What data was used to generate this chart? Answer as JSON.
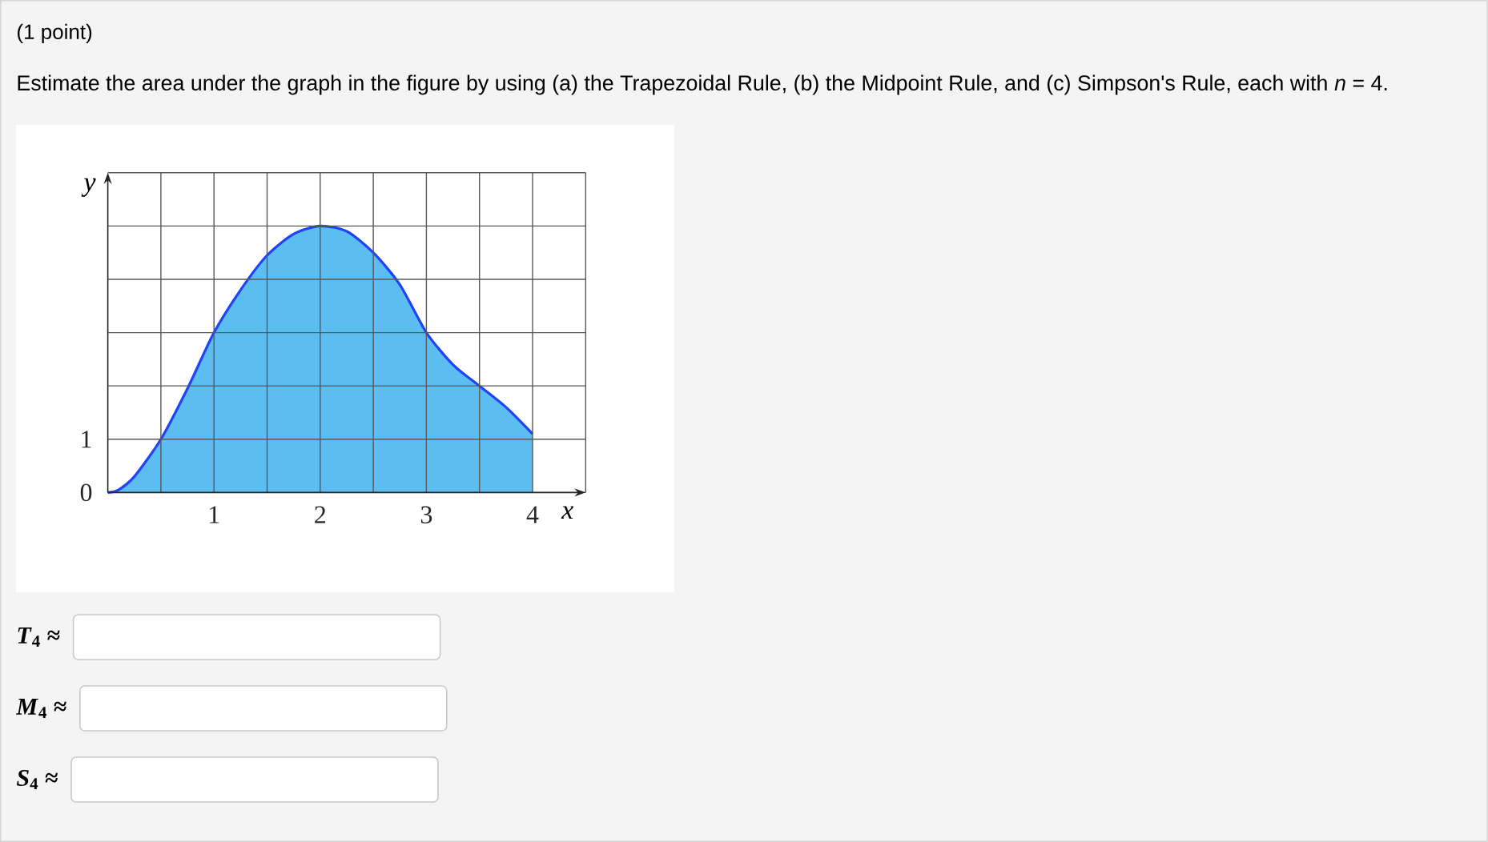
{
  "chart_data": {
    "type": "area",
    "title": "(1 point)",
    "subtitle": "Estimate the area under the graph in the figure by using (a) the Trapezoidal Rule, (b) the Midpoint Rule, and (c) Simpson's Rule, each with *n* = 4.",
    "xlabel": "x",
    "ylabel": "y",
    "annotations": [
      "*T*$_{4}$ ≈",
      "*M*$_{4}$ ≈",
      "*S*$_{4}$ ≈"
    ],
    "x": [
      0,
      0.1,
      0.25,
      0.5,
      0.75,
      1,
      1.25,
      1.5,
      1.75,
      2,
      2.25,
      2.5,
      2.75,
      3,
      3.25,
      3.5,
      3.75,
      4
    ],
    "series": [
      {
        "color": "#5cbdf0",
        "values": [
          0,
          0.05,
          0.3,
          1.0,
          1.95,
          3.0,
          3.8,
          4.45,
          4.85,
          5.0,
          4.9,
          4.5,
          3.9,
          3.0,
          2.4,
          2.0,
          1.6,
          1.1
        ]
      }
    ],
    "xlim": [
      0,
      4.5
    ],
    "ylim": [
      0,
      6
    ],
    "xticks": [
      {
        "value": 0.5,
        "label": null
      },
      1,
      {
        "value": 1.5,
        "label": null
      },
      2,
      {
        "value": 2.5,
        "label": null
      },
      3,
      {
        "value": 3.5,
        "label": null
      },
      4,
      {
        "value": 4.5,
        "label": null
      }
    ],
    "yticks": [
      0,
      1,
      {
        "value": 2,
        "label": null
      },
      {
        "value": 3,
        "label": null
      },
      {
        "value": 4,
        "label": null
      },
      {
        "value": 5,
        "label": null
      },
      {
        "value": 6,
        "label": null
      }
    ],
    "grid": true
  }
}
